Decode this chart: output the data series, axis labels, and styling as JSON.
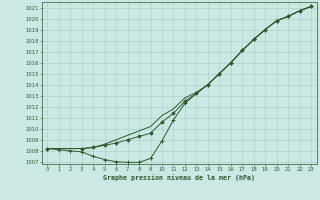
{
  "title": "Graphe pression niveau de la mer (hPa)",
  "bg_color": "#cce8e4",
  "grid_color": "#aaccc8",
  "line_color": "#2d5a2d",
  "xlim": [
    -0.5,
    23.5
  ],
  "ylim": [
    1006.8,
    1021.5
  ],
  "yticks": [
    1007,
    1008,
    1009,
    1010,
    1011,
    1012,
    1013,
    1014,
    1015,
    1016,
    1017,
    1018,
    1019,
    1020,
    1021
  ],
  "xticks": [
    0,
    1,
    2,
    3,
    4,
    5,
    6,
    7,
    8,
    9,
    10,
    11,
    12,
    13,
    14,
    15,
    16,
    17,
    18,
    19,
    20,
    21,
    22,
    23
  ],
  "line1_x": [
    0,
    1,
    2,
    3,
    4,
    5,
    6,
    7,
    8,
    9,
    10,
    11,
    12,
    13,
    14,
    15,
    16,
    17,
    18,
    19,
    20,
    21,
    22,
    23
  ],
  "line1_y": [
    1008.2,
    1008.1,
    1008.0,
    1007.9,
    1007.5,
    1007.2,
    1007.0,
    1006.95,
    1006.95,
    1007.3,
    1008.9,
    1010.8,
    1012.3,
    1013.2,
    1014.0,
    1015.0,
    1016.0,
    1017.1,
    1018.1,
    1019.0,
    1019.8,
    1020.2,
    1020.7,
    1021.1
  ],
  "line2_x": [
    0,
    3,
    4,
    5,
    6,
    7,
    8,
    9,
    10,
    11,
    12,
    13,
    14,
    15,
    16,
    17,
    18,
    19,
    20,
    21,
    22,
    23
  ],
  "line2_y": [
    1008.2,
    1008.2,
    1008.3,
    1008.5,
    1008.7,
    1009.0,
    1009.3,
    1009.6,
    1010.6,
    1011.4,
    1012.5,
    1013.2,
    1014.0,
    1015.0,
    1016.0,
    1017.1,
    1018.1,
    1019.0,
    1019.8,
    1020.2,
    1020.7,
    1021.1
  ],
  "line3_x": [
    0,
    3,
    4,
    5,
    6,
    7,
    8,
    9,
    10,
    11,
    12,
    13,
    14,
    15,
    16,
    17,
    18,
    19,
    20,
    21,
    22,
    23
  ],
  "line3_y": [
    1008.2,
    1008.2,
    1008.3,
    1008.6,
    1009.0,
    1009.4,
    1009.8,
    1010.2,
    1011.2,
    1011.8,
    1012.8,
    1013.3,
    1014.0,
    1015.0,
    1016.0,
    1017.1,
    1018.1,
    1019.0,
    1019.8,
    1020.2,
    1020.7,
    1021.1
  ]
}
